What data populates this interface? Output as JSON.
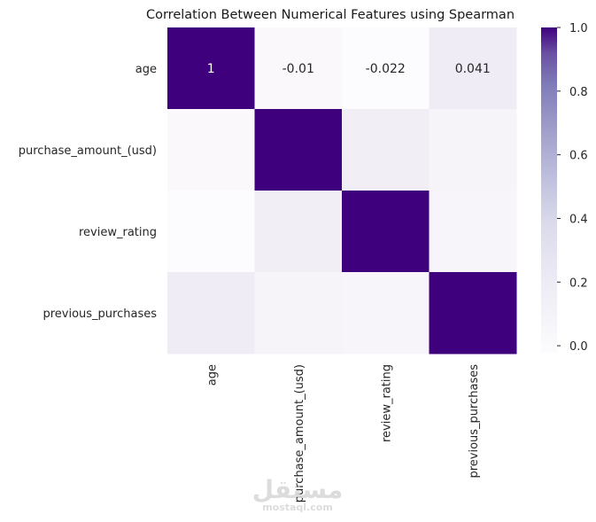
{
  "chart_data": {
    "type": "heatmap",
    "title": "Correlation Between Numerical Features using Spearman",
    "row_labels": [
      "age",
      "purchase_amount_(usd)",
      "review_rating",
      "previous_purchases"
    ],
    "col_labels": [
      "age",
      "purchase_amount_(usd)",
      "review_rating",
      "previous_purchases"
    ],
    "matrix": [
      [
        1,
        -0.01,
        -0.022,
        0.041
      ],
      [
        -0.01,
        1,
        0.03,
        0.008
      ],
      [
        -0.022,
        0.03,
        1,
        0.005
      ],
      [
        0.041,
        0.008,
        0.005,
        1
      ]
    ],
    "annotations": [
      [
        "1",
        "-0.01",
        "-0.022",
        "0.041"
      ],
      [
        "",
        "",
        "",
        ""
      ],
      [
        "",
        "",
        "",
        ""
      ],
      [
        "",
        "",
        "",
        ""
      ]
    ],
    "colormap": "Purples",
    "color_low": "#fcfbfd",
    "color_high": "#3f007d",
    "vmin": -0.022,
    "vmax": 1,
    "colorbar_ticks": [
      "0.0",
      "0.2",
      "0.4",
      "0.6",
      "0.8",
      "1.0"
    ],
    "colorbar_tick_values": [
      0,
      0.2,
      0.4,
      0.6,
      0.8,
      1.0
    ]
  },
  "watermark": {
    "arabic": "مستقل",
    "url": "mostaql.com"
  }
}
